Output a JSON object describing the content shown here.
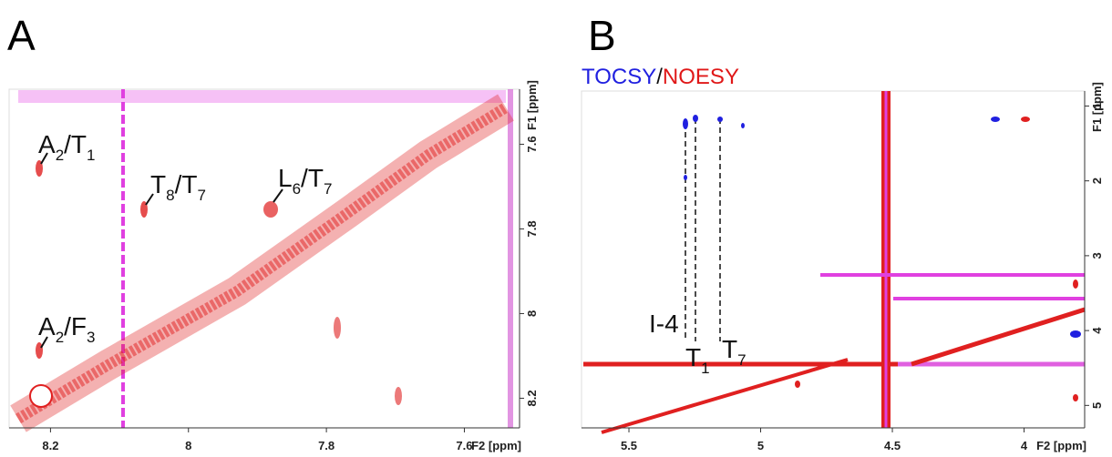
{
  "chart_data": [
    {
      "type": "nmr2d",
      "panel_label": "A",
      "xlabel": "F2 [ppm]",
      "ylabel": "F1 [ppm]",
      "xlim": [
        8.26,
        7.52
      ],
      "ylim": [
        7.47,
        8.27
      ],
      "xticks": [
        8.2,
        8.0,
        7.8,
        7.6
      ],
      "yticks": [
        7.6,
        7.8,
        8.0,
        8.2
      ],
      "annotations": [
        [
          "A",
          "2",
          "/T",
          "1"
        ],
        [
          "T",
          "8",
          "/T",
          "7"
        ],
        [
          "L",
          "6",
          "/T",
          "7"
        ],
        [
          "A",
          "2",
          "/F",
          "3"
        ]
      ]
    },
    {
      "type": "nmr2d",
      "panel_label": "B",
      "xlabel": "F2 [ppm]",
      "ylabel": "F1 [ppm]",
      "legend": [
        {
          "name": "TOCSY",
          "color": "#2020e0"
        },
        {
          "text": "/"
        },
        {
          "name": "NOESY",
          "color": "#e01818"
        }
      ],
      "xlim": [
        5.68,
        3.77
      ],
      "ylim": [
        0.8,
        5.3
      ],
      "xticks": [
        5.5,
        5.0,
        4.5,
        4.0
      ],
      "yticks": [
        1,
        2,
        3,
        4,
        5
      ],
      "annotations": [
        [
          "I-4"
        ],
        [
          "T",
          "1"
        ],
        [
          "T",
          "7"
        ]
      ]
    }
  ]
}
